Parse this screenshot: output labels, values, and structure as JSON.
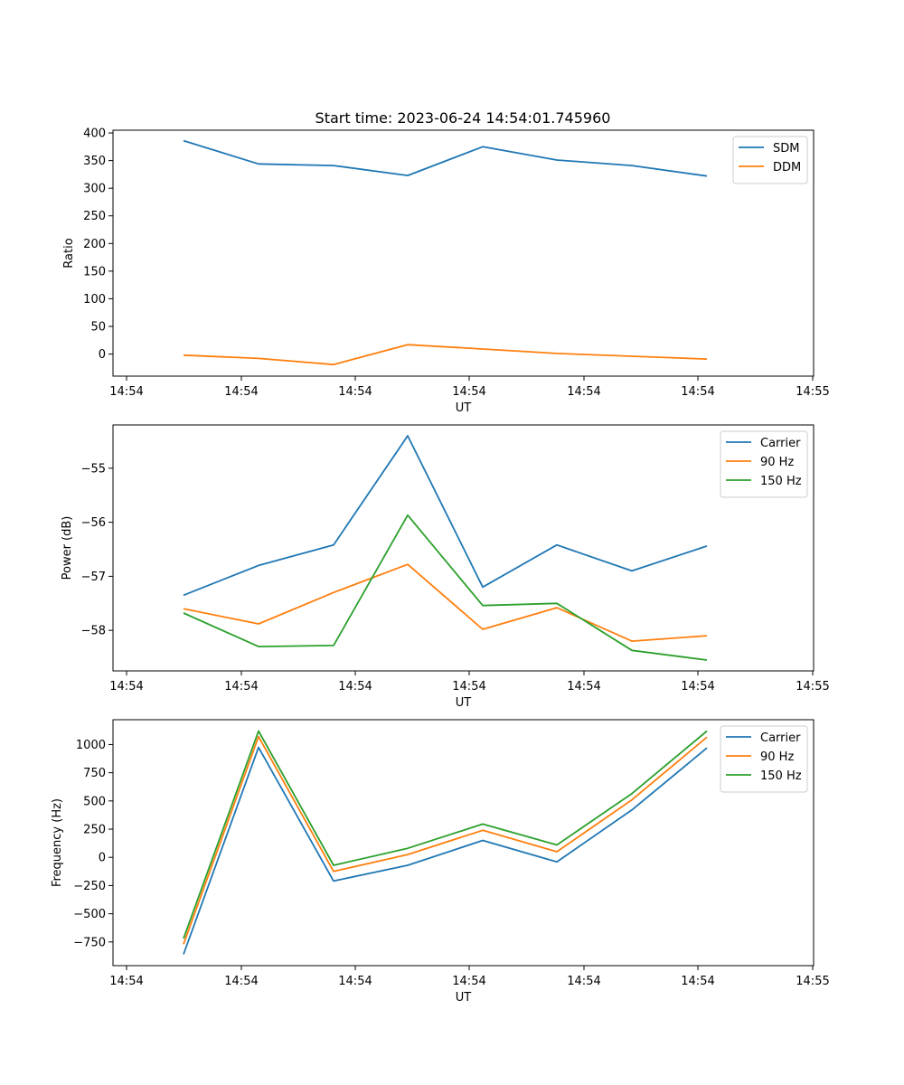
{
  "title": "Start time: 2023-06-24 14:54:01.745960",
  "colors": {
    "blue": "#1f77b4",
    "orange": "#ff7f0e",
    "green": "#2ca02c"
  },
  "chart_data": [
    {
      "type": "line",
      "title": "Start time: 2023-06-24 14:54:01.745960",
      "xlabel": "UT",
      "ylabel": "Ratio",
      "xticks": [
        "14:54",
        "14:54",
        "14:54",
        "14:54",
        "14:54",
        "14:54",
        "14:55"
      ],
      "yticks": [
        0,
        50,
        100,
        150,
        200,
        250,
        300,
        350,
        400
      ],
      "ylim": [
        -40,
        405
      ],
      "legend_position": "top-right",
      "series": [
        {
          "name": "SDM",
          "color": "#1f77b4",
          "values": [
            386,
            344,
            341,
            323,
            375,
            351,
            341,
            322
          ]
        },
        {
          "name": "DDM",
          "color": "#ff7f0e",
          "values": [
            -2,
            -8,
            -19,
            17,
            9,
            1,
            -4,
            -9
          ]
        }
      ]
    },
    {
      "type": "line",
      "xlabel": "UT",
      "ylabel": "Power (dB)",
      "xticks": [
        "14:54",
        "14:54",
        "14:54",
        "14:54",
        "14:54",
        "14:54",
        "14:55"
      ],
      "yticks": [
        -58,
        -57,
        -56,
        -55
      ],
      "ylim": [
        -58.75,
        -54.2
      ],
      "legend_position": "top-right",
      "series": [
        {
          "name": "Carrier",
          "color": "#1f77b4",
          "values": [
            -57.35,
            -56.8,
            -56.42,
            -54.4,
            -57.2,
            -56.42,
            -56.9,
            -56.44
          ]
        },
        {
          "name": "90 Hz",
          "color": "#ff7f0e",
          "values": [
            -57.6,
            -57.88,
            -57.3,
            -56.78,
            -57.98,
            -57.58,
            -58.2,
            -58.1
          ]
        },
        {
          "name": "150 Hz",
          "color": "#2ca02c",
          "values": [
            -57.68,
            -58.3,
            -58.28,
            -55.87,
            -57.54,
            -57.5,
            -58.37,
            -58.55
          ]
        }
      ]
    },
    {
      "type": "line",
      "xlabel": "UT",
      "ylabel": "Frequency (Hz)",
      "xticks": [
        "14:54",
        "14:54",
        "14:54",
        "14:54",
        "14:54",
        "14:54",
        "14:55"
      ],
      "yticks": [
        -750,
        -500,
        -250,
        0,
        250,
        500,
        750,
        1000
      ],
      "ylim": [
        -960,
        1220
      ],
      "legend_position": "top-right",
      "series": [
        {
          "name": "Carrier",
          "color": "#1f77b4",
          "values": [
            -860,
            975,
            -210,
            -70,
            150,
            -40,
            420,
            970
          ]
        },
        {
          "name": "90 Hz",
          "color": "#ff7f0e",
          "values": [
            -770,
            1070,
            -125,
            25,
            240,
            50,
            510,
            1065
          ]
        },
        {
          "name": "150 Hz",
          "color": "#2ca02c",
          "values": [
            -720,
            1120,
            -70,
            80,
            295,
            110,
            565,
            1120
          ]
        }
      ]
    }
  ]
}
